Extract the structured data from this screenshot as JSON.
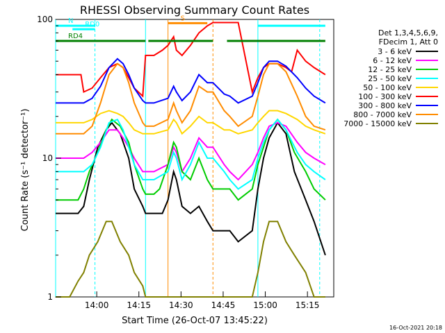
{
  "chart_data": {
    "type": "line",
    "title": "RHESSI Observing Summary Count Rates",
    "xlabel": "Start Time (26-Oct-07 13:45:22)",
    "ylabel": "Count Rate (s⁻¹ detector⁻¹)",
    "y_scale": "log",
    "ylim": [
      1,
      100
    ],
    "xlim": [
      "13:45:22",
      "15:24"
    ],
    "x_ticks": [
      "14:00",
      "14:15",
      "14:30",
      "14:45",
      "15:00",
      "15:15"
    ],
    "y_ticks": [
      "1",
      "10",
      "100"
    ],
    "legend_header": [
      "Det 1,3,4,5,6,9,",
      "FDecim 1, Att 0"
    ],
    "series": [
      {
        "name": "3 - 6 keV",
        "color": "#000000",
        "x": [
          0,
          2,
          5,
          8,
          10,
          12,
          15,
          18,
          20,
          23,
          26,
          28,
          31,
          32,
          35,
          37,
          38,
          40,
          42,
          43,
          45,
          48,
          51,
          54,
          56,
          60,
          62,
          65,
          70,
          72,
          74,
          76,
          79,
          82,
          85,
          89,
          92,
          96
        ],
        "y": [
          4.0,
          4.0,
          4.0,
          4.0,
          4.5,
          7,
          12,
          16,
          18,
          15,
          10,
          6,
          4.5,
          4.0,
          4.0,
          4.0,
          4.0,
          5,
          8,
          7,
          4.5,
          4.0,
          4.5,
          3.5,
          3.0,
          3.0,
          3.0,
          2.5,
          3.0,
          6,
          10,
          14,
          18,
          15,
          8,
          5,
          3.5,
          2.0
        ]
      },
      {
        "name": "6 - 12 keV",
        "color": "#ff00ff",
        "x": [
          0,
          5,
          10,
          13,
          16,
          19,
          22,
          24,
          26,
          28,
          31,
          32,
          35,
          40,
          42,
          43,
          45,
          48,
          51,
          54,
          56,
          60,
          62,
          65,
          70,
          72,
          74,
          76,
          79,
          82,
          86,
          89,
          92,
          96
        ],
        "y": [
          10,
          10,
          10,
          11,
          13,
          16,
          16,
          14,
          12,
          10,
          8,
          8,
          8,
          9,
          12,
          11,
          8,
          10,
          14,
          12,
          12,
          9,
          8,
          7,
          9,
          11,
          14,
          17,
          18,
          17,
          13,
          11,
          10,
          9
        ]
      },
      {
        "name": "12 - 25 keV",
        "color": "#00cc00",
        "x": [
          0,
          5,
          8,
          10,
          12,
          15,
          18,
          20,
          23,
          26,
          28,
          31,
          32,
          35,
          37,
          40,
          42,
          43,
          45,
          48,
          51,
          54,
          56,
          60,
          62,
          65,
          70,
          72,
          74,
          76,
          79,
          82,
          85,
          89,
          92,
          96
        ],
        "y": [
          5,
          5,
          5,
          6,
          8,
          11,
          16,
          19,
          17,
          13,
          9,
          6,
          5.5,
          5.5,
          6,
          9,
          13,
          12,
          8,
          7,
          10,
          7,
          6,
          6,
          6,
          5,
          6,
          9,
          12,
          16,
          19,
          16,
          11,
          8,
          6,
          5
        ]
      },
      {
        "name": "25 - 50 keV",
        "color": "#00ffff",
        "x": [
          0,
          5,
          10,
          13,
          16,
          19,
          22,
          24,
          26,
          28,
          31,
          32,
          35,
          40,
          42,
          43,
          45,
          48,
          51,
          54,
          56,
          60,
          62,
          65,
          70,
          72,
          74,
          76,
          79,
          82,
          86,
          89,
          92,
          96
        ],
        "y": [
          8,
          8,
          8,
          9,
          12,
          18,
          19,
          16,
          12,
          9,
          7,
          7,
          7,
          8,
          11,
          10,
          7,
          9,
          13,
          10,
          10,
          8,
          7,
          6,
          7,
          10,
          13,
          16,
          19,
          16,
          11,
          9,
          8,
          7
        ]
      },
      {
        "name": "50 - 100 keV",
        "color": "#ffd700",
        "x": [
          0,
          5,
          10,
          13,
          16,
          19,
          22,
          24,
          26,
          28,
          31,
          32,
          35,
          40,
          42,
          43,
          45,
          48,
          51,
          54,
          56,
          60,
          62,
          65,
          70,
          72,
          74,
          76,
          79,
          82,
          86,
          89,
          92,
          96
        ],
        "y": [
          18,
          18,
          18,
          19,
          21,
          22,
          21,
          20,
          18,
          16,
          15,
          15,
          15,
          16,
          19,
          18,
          15,
          17,
          20,
          18,
          18,
          16,
          16,
          15,
          16,
          18,
          20,
          22,
          22,
          21,
          19,
          17,
          16,
          15
        ]
      },
      {
        "name": "100 - 300 keV",
        "color": "#ff0000",
        "x": [
          0,
          5,
          9,
          10,
          13,
          16,
          19,
          22,
          24,
          26,
          28,
          31,
          32,
          35,
          38,
          40,
          42,
          43,
          45,
          48,
          51,
          54,
          56,
          57,
          60,
          62,
          65,
          70,
          72,
          74,
          76,
          79,
          82,
          84,
          86,
          89,
          92,
          96
        ],
        "y": [
          40,
          40,
          40,
          30,
          32,
          38,
          45,
          48,
          45,
          38,
          32,
          28,
          55,
          55,
          60,
          65,
          75,
          60,
          55,
          65,
          80,
          90,
          95,
          95,
          95,
          95,
          95,
          30,
          38,
          45,
          48,
          48,
          45,
          42,
          60,
          50,
          45,
          40
        ]
      },
      {
        "name": "300 - 800 keV",
        "color": "#0000ff",
        "x": [
          0,
          5,
          10,
          13,
          16,
          19,
          22,
          24,
          26,
          28,
          31,
          32,
          35,
          40,
          42,
          43,
          45,
          48,
          51,
          54,
          56,
          60,
          62,
          65,
          70,
          72,
          74,
          76,
          79,
          82,
          86,
          89,
          92,
          96
        ],
        "y": [
          25,
          25,
          25,
          27,
          33,
          45,
          52,
          48,
          40,
          32,
          26,
          25,
          25,
          27,
          33,
          30,
          26,
          30,
          40,
          35,
          35,
          29,
          28,
          25,
          28,
          35,
          45,
          50,
          50,
          46,
          38,
          32,
          28,
          25
        ]
      },
      {
        "name": "800 - 7000 keV",
        "color": "#ff8c00",
        "x": [
          0,
          5,
          10,
          13,
          16,
          19,
          22,
          24,
          26,
          28,
          31,
          32,
          35,
          40,
          42,
          43,
          45,
          48,
          51,
          54,
          56,
          60,
          62,
          65,
          70,
          72,
          74,
          76,
          79,
          82,
          86,
          89,
          92,
          96
        ],
        "y": [
          15,
          15,
          15,
          17,
          25,
          40,
          48,
          45,
          35,
          25,
          18,
          17,
          17,
          19,
          25,
          22,
          18,
          22,
          33,
          30,
          30,
          22,
          20,
          17,
          20,
          28,
          40,
          48,
          48,
          42,
          28,
          20,
          17,
          16
        ]
      },
      {
        "name": "7000 - 15000 keV",
        "color": "#808000",
        "x": [
          0,
          5,
          8,
          10,
          12,
          15,
          18,
          20,
          23,
          26,
          28,
          31,
          32,
          35,
          37,
          40,
          42,
          43,
          45,
          48,
          51,
          54,
          56,
          60,
          62,
          65,
          70,
          72,
          74,
          76,
          79,
          82,
          85,
          89,
          92,
          96
        ],
        "y": [
          1,
          1,
          1.3,
          1.5,
          2,
          2.5,
          3.5,
          3.5,
          2.5,
          2,
          1.5,
          1.2,
          1,
          1,
          1,
          1,
          1,
          1,
          1,
          1,
          1,
          1,
          1,
          1,
          1,
          1,
          1,
          1.5,
          2.5,
          3.5,
          3.5,
          2.5,
          2,
          1.5,
          1,
          1
        ]
      }
    ],
    "annotations": [
      {
        "label": "N",
        "color": "#00ffff",
        "x_start": 0,
        "x_end": 14,
        "y": 90
      },
      {
        "label": "RD0",
        "color": "#00ffff",
        "x_start": 6,
        "x_end": 14,
        "y": 85
      },
      {
        "label": "RD4",
        "color": "#008000",
        "x_start": 0,
        "x_end": 32,
        "y": 70
      },
      {
        "label": "S",
        "color": "#ff8c00",
        "x_start": 40,
        "x_end": 54,
        "y": 94
      },
      {
        "label": "",
        "color": "#008000",
        "x_start": 33,
        "x_end": 56,
        "y": 70
      },
      {
        "label": "",
        "color": "#008000",
        "x_start": 61,
        "x_end": 96,
        "y": 70
      },
      {
        "label": "",
        "color": "#00ffff",
        "x_start": 72,
        "x_end": 96,
        "y": 90
      }
    ],
    "vertical_lines": [
      {
        "x": 0,
        "color": "#00ffff",
        "style": "solid"
      },
      {
        "x": 14,
        "color": "#00ffff",
        "style": "dashed"
      },
      {
        "x": 32,
        "color": "#00ffff",
        "style": "solid"
      },
      {
        "x": 40,
        "color": "#ff8c00",
        "style": "solid"
      },
      {
        "x": 56,
        "color": "#ff8c00",
        "style": "dashed"
      },
      {
        "x": 72,
        "color": "#00ffff",
        "style": "solid"
      },
      {
        "x": 94,
        "color": "#00ffff",
        "style": "dashed"
      }
    ],
    "grid": false,
    "legend_position": "right"
  },
  "timestamp": "16-Oct-2021 20:18"
}
